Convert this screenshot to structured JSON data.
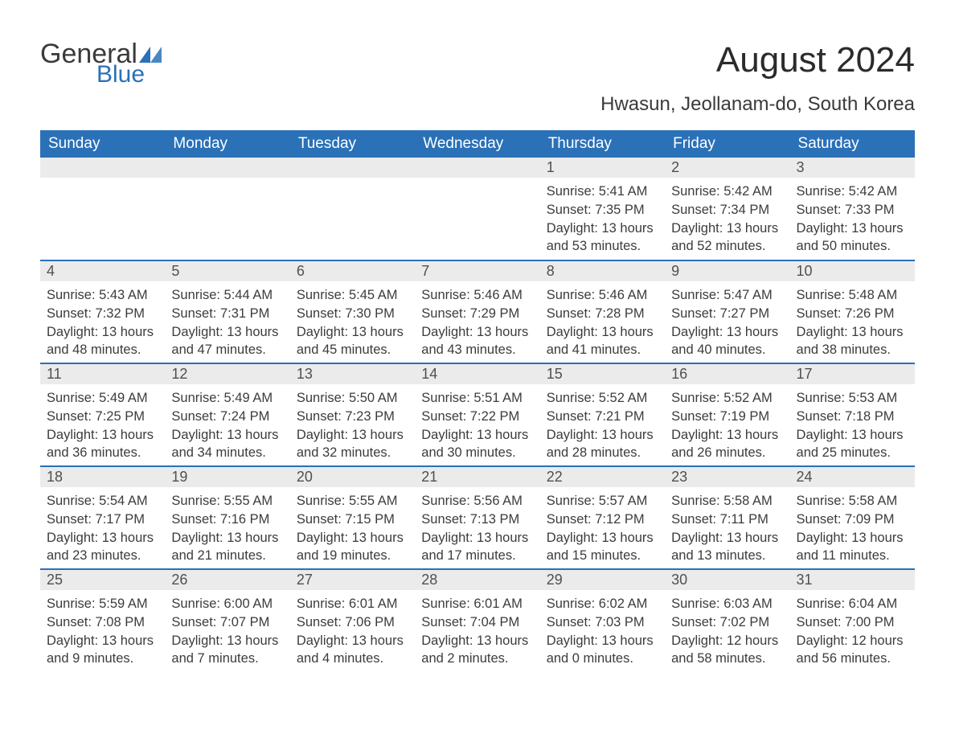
{
  "logo": {
    "general": "General",
    "blue": "Blue",
    "flag_color": "#2a71b8"
  },
  "title": "August 2024",
  "subtitle": "Hwasun, Jeollanam-do, South Korea",
  "colors": {
    "header_bg": "#2a71b8",
    "header_text": "#ffffff",
    "daynum_bg": "#ebebeb",
    "body_text": "#3c3c3c",
    "row_border": "#2a71b8"
  },
  "days_of_week": [
    "Sunday",
    "Monday",
    "Tuesday",
    "Wednesday",
    "Thursday",
    "Friday",
    "Saturday"
  ],
  "weeks": [
    [
      {
        "n": "",
        "sunrise": "",
        "sunset": "",
        "daylight": ""
      },
      {
        "n": "",
        "sunrise": "",
        "sunset": "",
        "daylight": ""
      },
      {
        "n": "",
        "sunrise": "",
        "sunset": "",
        "daylight": ""
      },
      {
        "n": "",
        "sunrise": "",
        "sunset": "",
        "daylight": ""
      },
      {
        "n": "1",
        "sunrise": "Sunrise: 5:41 AM",
        "sunset": "Sunset: 7:35 PM",
        "daylight": "Daylight: 13 hours and 53 minutes."
      },
      {
        "n": "2",
        "sunrise": "Sunrise: 5:42 AM",
        "sunset": "Sunset: 7:34 PM",
        "daylight": "Daylight: 13 hours and 52 minutes."
      },
      {
        "n": "3",
        "sunrise": "Sunrise: 5:42 AM",
        "sunset": "Sunset: 7:33 PM",
        "daylight": "Daylight: 13 hours and 50 minutes."
      }
    ],
    [
      {
        "n": "4",
        "sunrise": "Sunrise: 5:43 AM",
        "sunset": "Sunset: 7:32 PM",
        "daylight": "Daylight: 13 hours and 48 minutes."
      },
      {
        "n": "5",
        "sunrise": "Sunrise: 5:44 AM",
        "sunset": "Sunset: 7:31 PM",
        "daylight": "Daylight: 13 hours and 47 minutes."
      },
      {
        "n": "6",
        "sunrise": "Sunrise: 5:45 AM",
        "sunset": "Sunset: 7:30 PM",
        "daylight": "Daylight: 13 hours and 45 minutes."
      },
      {
        "n": "7",
        "sunrise": "Sunrise: 5:46 AM",
        "sunset": "Sunset: 7:29 PM",
        "daylight": "Daylight: 13 hours and 43 minutes."
      },
      {
        "n": "8",
        "sunrise": "Sunrise: 5:46 AM",
        "sunset": "Sunset: 7:28 PM",
        "daylight": "Daylight: 13 hours and 41 minutes."
      },
      {
        "n": "9",
        "sunrise": "Sunrise: 5:47 AM",
        "sunset": "Sunset: 7:27 PM",
        "daylight": "Daylight: 13 hours and 40 minutes."
      },
      {
        "n": "10",
        "sunrise": "Sunrise: 5:48 AM",
        "sunset": "Sunset: 7:26 PM",
        "daylight": "Daylight: 13 hours and 38 minutes."
      }
    ],
    [
      {
        "n": "11",
        "sunrise": "Sunrise: 5:49 AM",
        "sunset": "Sunset: 7:25 PM",
        "daylight": "Daylight: 13 hours and 36 minutes."
      },
      {
        "n": "12",
        "sunrise": "Sunrise: 5:49 AM",
        "sunset": "Sunset: 7:24 PM",
        "daylight": "Daylight: 13 hours and 34 minutes."
      },
      {
        "n": "13",
        "sunrise": "Sunrise: 5:50 AM",
        "sunset": "Sunset: 7:23 PM",
        "daylight": "Daylight: 13 hours and 32 minutes."
      },
      {
        "n": "14",
        "sunrise": "Sunrise: 5:51 AM",
        "sunset": "Sunset: 7:22 PM",
        "daylight": "Daylight: 13 hours and 30 minutes."
      },
      {
        "n": "15",
        "sunrise": "Sunrise: 5:52 AM",
        "sunset": "Sunset: 7:21 PM",
        "daylight": "Daylight: 13 hours and 28 minutes."
      },
      {
        "n": "16",
        "sunrise": "Sunrise: 5:52 AM",
        "sunset": "Sunset: 7:19 PM",
        "daylight": "Daylight: 13 hours and 26 minutes."
      },
      {
        "n": "17",
        "sunrise": "Sunrise: 5:53 AM",
        "sunset": "Sunset: 7:18 PM",
        "daylight": "Daylight: 13 hours and 25 minutes."
      }
    ],
    [
      {
        "n": "18",
        "sunrise": "Sunrise: 5:54 AM",
        "sunset": "Sunset: 7:17 PM",
        "daylight": "Daylight: 13 hours and 23 minutes."
      },
      {
        "n": "19",
        "sunrise": "Sunrise: 5:55 AM",
        "sunset": "Sunset: 7:16 PM",
        "daylight": "Daylight: 13 hours and 21 minutes."
      },
      {
        "n": "20",
        "sunrise": "Sunrise: 5:55 AM",
        "sunset": "Sunset: 7:15 PM",
        "daylight": "Daylight: 13 hours and 19 minutes."
      },
      {
        "n": "21",
        "sunrise": "Sunrise: 5:56 AM",
        "sunset": "Sunset: 7:13 PM",
        "daylight": "Daylight: 13 hours and 17 minutes."
      },
      {
        "n": "22",
        "sunrise": "Sunrise: 5:57 AM",
        "sunset": "Sunset: 7:12 PM",
        "daylight": "Daylight: 13 hours and 15 minutes."
      },
      {
        "n": "23",
        "sunrise": "Sunrise: 5:58 AM",
        "sunset": "Sunset: 7:11 PM",
        "daylight": "Daylight: 13 hours and 13 minutes."
      },
      {
        "n": "24",
        "sunrise": "Sunrise: 5:58 AM",
        "sunset": "Sunset: 7:09 PM",
        "daylight": "Daylight: 13 hours and 11 minutes."
      }
    ],
    [
      {
        "n": "25",
        "sunrise": "Sunrise: 5:59 AM",
        "sunset": "Sunset: 7:08 PM",
        "daylight": "Daylight: 13 hours and 9 minutes."
      },
      {
        "n": "26",
        "sunrise": "Sunrise: 6:00 AM",
        "sunset": "Sunset: 7:07 PM",
        "daylight": "Daylight: 13 hours and 7 minutes."
      },
      {
        "n": "27",
        "sunrise": "Sunrise: 6:01 AM",
        "sunset": "Sunset: 7:06 PM",
        "daylight": "Daylight: 13 hours and 4 minutes."
      },
      {
        "n": "28",
        "sunrise": "Sunrise: 6:01 AM",
        "sunset": "Sunset: 7:04 PM",
        "daylight": "Daylight: 13 hours and 2 minutes."
      },
      {
        "n": "29",
        "sunrise": "Sunrise: 6:02 AM",
        "sunset": "Sunset: 7:03 PM",
        "daylight": "Daylight: 13 hours and 0 minutes."
      },
      {
        "n": "30",
        "sunrise": "Sunrise: 6:03 AM",
        "sunset": "Sunset: 7:02 PM",
        "daylight": "Daylight: 12 hours and 58 minutes."
      },
      {
        "n": "31",
        "sunrise": "Sunrise: 6:04 AM",
        "sunset": "Sunset: 7:00 PM",
        "daylight": "Daylight: 12 hours and 56 minutes."
      }
    ]
  ]
}
